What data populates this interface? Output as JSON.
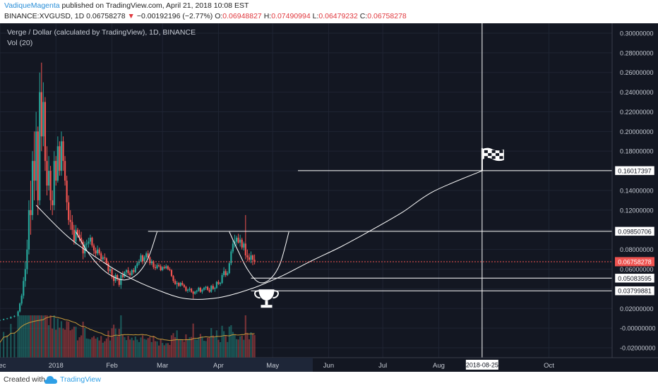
{
  "header": {
    "author": "VadiqueMagenta",
    "published": "published on TradingView.com, April 21, 2018 10:08 EST",
    "symbol_line": "BINANCE:XVGUSD, 1D",
    "last": "0.06758278",
    "change_arrow": "▼",
    "change": "−0.00192196 (−2.77%)",
    "o_label": "O:",
    "o_value": "0.06948827",
    "h_label": "H:",
    "h_value": "0.07490994",
    "l_label": "L:",
    "l_value": "0.06479232",
    "c_label": "C:",
    "c_value": "0.06758278"
  },
  "footer": {
    "created_with": "Created with",
    "brand": "TradingView"
  },
  "colors": {
    "background": "#131722",
    "up": "#26a69a",
    "down": "#ef5350",
    "price_line": "#ef5350",
    "annotation": "#ffffff",
    "volume_ma": "#c79a3a"
  },
  "chart_data": {
    "type": "candlestick",
    "title": "Verge / Dollar (calculated by TradingView), 1D, BINANCE",
    "volume_label": "Vol (20)",
    "ylim": [
      -0.03,
      0.31
    ],
    "y_ticks": [
      "0.30000000",
      "0.28000000",
      "0.26000000",
      "0.24000000",
      "0.22000000",
      "0.20000000",
      "0.18000000",
      "0.16000000",
      "0.14000000",
      "0.12000000",
      "0.10000000",
      "0.08000000",
      "0.06000000",
      "0.04000000",
      "0.02000000",
      "-0.00000000",
      "-0.02000000"
    ],
    "y_tick_values": [
      0.3,
      0.28,
      0.26,
      0.24,
      0.22,
      0.2,
      0.18,
      0.16,
      0.14,
      0.12,
      0.1,
      0.08,
      0.06,
      0.04,
      0.02,
      0.0,
      -0.02
    ],
    "x_range": [
      "2017-12-01",
      "2018-11-05"
    ],
    "x_ticks": [
      {
        "label": "Dec",
        "date": "2017-12-01"
      },
      {
        "label": "2018",
        "date": "2018-01-01"
      },
      {
        "label": "Feb",
        "date": "2018-02-01"
      },
      {
        "label": "Mar",
        "date": "2018-03-01"
      },
      {
        "label": "Apr",
        "date": "2018-04-01"
      },
      {
        "label": "May",
        "date": "2018-05-01"
      },
      {
        "label": "Jun",
        "date": "2018-06-01"
      },
      {
        "label": "Jul",
        "date": "2018-07-01"
      },
      {
        "label": "Aug",
        "date": "2018-08-01"
      },
      {
        "label": "Oct",
        "date": "2018-10-01"
      }
    ],
    "crosshair": {
      "date": "2018-08-25",
      "label": "2018-08-25"
    },
    "last_price": {
      "value": 0.06758278,
      "label": "0.06758278"
    },
    "levels": [
      {
        "value": 0.16017397,
        "label": "0.16017397",
        "from": "2018-05-15"
      },
      {
        "value": 0.09850706,
        "label": "0.09850706",
        "from": "2018-02-21"
      },
      {
        "value": 0.05083595,
        "label": "0.05083595",
        "from": "2018-04-19"
      },
      {
        "value": 0.03799881,
        "label": "0.03799881",
        "from": "2018-04-19"
      }
    ],
    "trend_path": [
      [
        "2017-12-21",
        0.125
      ],
      [
        "2018-01-07",
        0.094
      ],
      [
        "2018-01-24",
        0.071
      ],
      [
        "2018-02-09",
        0.053
      ],
      [
        "2018-02-26",
        0.039
      ],
      [
        "2018-03-14",
        0.03
      ],
      [
        "2018-04-01",
        0.031
      ],
      [
        "2018-04-19",
        0.04
      ],
      [
        "2018-05-06",
        0.053
      ],
      [
        "2018-05-22",
        0.068
      ],
      [
        "2018-06-08",
        0.083
      ],
      [
        "2018-06-25",
        0.1
      ],
      [
        "2018-07-12",
        0.118
      ],
      [
        "2018-07-29",
        0.139
      ],
      [
        "2018-08-25",
        0.16
      ]
    ],
    "cups": [
      [
        [
          "2018-01-12",
          0.098
        ],
        [
          "2018-01-18",
          0.079
        ],
        [
          "2018-01-25",
          0.063
        ],
        [
          "2018-02-01",
          0.053
        ],
        [
          "2018-02-08",
          0.049
        ],
        [
          "2018-02-15",
          0.055
        ],
        [
          "2018-02-21",
          0.071
        ],
        [
          "2018-02-26",
          0.098
        ]
      ],
      [
        [
          "2018-04-07",
          0.098
        ],
        [
          "2018-04-12",
          0.078
        ],
        [
          "2018-04-17",
          0.06
        ],
        [
          "2018-04-23",
          0.047
        ],
        [
          "2018-04-29",
          0.049
        ],
        [
          "2018-05-05",
          0.065
        ],
        [
          "2018-05-10",
          0.098
        ]
      ]
    ],
    "flag_date": "2018-08-25",
    "cup_icon_date": "2018-04-19",
    "candles": [
      [
        "2017-12-01",
        0.0082,
        0.0085,
        0.0078,
        0.0083
      ],
      [
        "2017-12-03",
        0.0083,
        0.0096,
        0.0081,
        0.0094
      ],
      [
        "2017-12-05",
        0.0094,
        0.0104,
        0.009,
        0.01
      ],
      [
        "2017-12-07",
        0.01,
        0.012,
        0.0095,
        0.0115
      ],
      [
        "2017-12-09",
        0.0115,
        0.013,
        0.011,
        0.0125
      ],
      [
        "2017-12-11",
        0.0125,
        0.018,
        0.012,
        0.017
      ],
      [
        "2017-12-12",
        0.017,
        0.026,
        0.016,
        0.025
      ],
      [
        "2017-12-13",
        0.025,
        0.035,
        0.023,
        0.033
      ],
      [
        "2017-12-14",
        0.033,
        0.052,
        0.03,
        0.048
      ],
      [
        "2017-12-15",
        0.048,
        0.068,
        0.042,
        0.06
      ],
      [
        "2017-12-16",
        0.06,
        0.09,
        0.055,
        0.08
      ],
      [
        "2017-12-17",
        0.08,
        0.13,
        0.075,
        0.12
      ],
      [
        "2017-12-18",
        0.12,
        0.15,
        0.095,
        0.115
      ],
      [
        "2017-12-19",
        0.115,
        0.18,
        0.11,
        0.17
      ],
      [
        "2017-12-20",
        0.17,
        0.2,
        0.13,
        0.15
      ],
      [
        "2017-12-21",
        0.15,
        0.22,
        0.14,
        0.2
      ],
      [
        "2017-12-22",
        0.2,
        0.205,
        0.115,
        0.13
      ],
      [
        "2017-12-23",
        0.13,
        0.26,
        0.125,
        0.24
      ],
      [
        "2017-12-24",
        0.24,
        0.27,
        0.18,
        0.195
      ],
      [
        "2017-12-25",
        0.195,
        0.25,
        0.185,
        0.23
      ],
      [
        "2017-12-26",
        0.23,
        0.235,
        0.16,
        0.17
      ],
      [
        "2017-12-27",
        0.17,
        0.185,
        0.135,
        0.145
      ],
      [
        "2017-12-28",
        0.145,
        0.175,
        0.14,
        0.16
      ],
      [
        "2017-12-29",
        0.16,
        0.165,
        0.12,
        0.13
      ],
      [
        "2017-12-30",
        0.13,
        0.14,
        0.115,
        0.125
      ],
      [
        "2017-12-31",
        0.125,
        0.18,
        0.12,
        0.17
      ],
      [
        "2018-01-01",
        0.17,
        0.175,
        0.145,
        0.15
      ],
      [
        "2018-01-02",
        0.15,
        0.195,
        0.148,
        0.185
      ],
      [
        "2018-01-03",
        0.185,
        0.19,
        0.155,
        0.16
      ],
      [
        "2018-01-04",
        0.16,
        0.2,
        0.155,
        0.19
      ],
      [
        "2018-01-05",
        0.19,
        0.195,
        0.16,
        0.17
      ],
      [
        "2018-01-06",
        0.17,
        0.175,
        0.145,
        0.15
      ],
      [
        "2018-01-07",
        0.15,
        0.155,
        0.12,
        0.128
      ],
      [
        "2018-01-08",
        0.128,
        0.135,
        0.105,
        0.11
      ],
      [
        "2018-01-09",
        0.11,
        0.12,
        0.1,
        0.108
      ],
      [
        "2018-01-10",
        0.108,
        0.115,
        0.095,
        0.1
      ],
      [
        "2018-01-11",
        0.1,
        0.105,
        0.085,
        0.088
      ],
      [
        "2018-01-12",
        0.088,
        0.105,
        0.085,
        0.1
      ],
      [
        "2018-01-13",
        0.1,
        0.102,
        0.092,
        0.095
      ],
      [
        "2018-01-14",
        0.095,
        0.1,
        0.088,
        0.092
      ],
      [
        "2018-01-15",
        0.092,
        0.098,
        0.085,
        0.088
      ],
      [
        "2018-01-16",
        0.088,
        0.09,
        0.07,
        0.076
      ],
      [
        "2018-01-17",
        0.076,
        0.088,
        0.072,
        0.085
      ],
      [
        "2018-01-18",
        0.085,
        0.09,
        0.08,
        0.086
      ],
      [
        "2018-01-19",
        0.086,
        0.092,
        0.082,
        0.088
      ],
      [
        "2018-01-20",
        0.088,
        0.095,
        0.085,
        0.092
      ],
      [
        "2018-01-21",
        0.092,
        0.093,
        0.082,
        0.084
      ],
      [
        "2018-01-22",
        0.084,
        0.086,
        0.075,
        0.079
      ],
      [
        "2018-01-23",
        0.079,
        0.082,
        0.073,
        0.076
      ],
      [
        "2018-01-24",
        0.076,
        0.084,
        0.074,
        0.08
      ],
      [
        "2018-01-25",
        0.08,
        0.082,
        0.074,
        0.076
      ],
      [
        "2018-01-26",
        0.076,
        0.078,
        0.068,
        0.07
      ],
      [
        "2018-01-27",
        0.07,
        0.074,
        0.068,
        0.072
      ],
      [
        "2018-01-28",
        0.072,
        0.076,
        0.069,
        0.071
      ],
      [
        "2018-01-29",
        0.071,
        0.072,
        0.064,
        0.066
      ],
      [
        "2018-01-30",
        0.066,
        0.067,
        0.056,
        0.058
      ],
      [
        "2018-01-31",
        0.058,
        0.062,
        0.056,
        0.06
      ],
      [
        "2018-02-01",
        0.06,
        0.061,
        0.05,
        0.052
      ],
      [
        "2018-02-02",
        0.052,
        0.054,
        0.043,
        0.048
      ],
      [
        "2018-02-03",
        0.048,
        0.056,
        0.046,
        0.054
      ],
      [
        "2018-02-04",
        0.054,
        0.055,
        0.048,
        0.05
      ],
      [
        "2018-02-05",
        0.05,
        0.051,
        0.042,
        0.044
      ],
      [
        "2018-02-06",
        0.044,
        0.056,
        0.04,
        0.054
      ],
      [
        "2018-02-07",
        0.054,
        0.058,
        0.05,
        0.052
      ],
      [
        "2018-02-08",
        0.052,
        0.058,
        0.051,
        0.057
      ],
      [
        "2018-02-09",
        0.057,
        0.06,
        0.054,
        0.059
      ],
      [
        "2018-02-10",
        0.059,
        0.062,
        0.054,
        0.056
      ],
      [
        "2018-02-11",
        0.056,
        0.058,
        0.052,
        0.054
      ],
      [
        "2018-02-12",
        0.054,
        0.06,
        0.053,
        0.059
      ],
      [
        "2018-02-13",
        0.059,
        0.061,
        0.055,
        0.057
      ],
      [
        "2018-02-14",
        0.057,
        0.064,
        0.056,
        0.063
      ],
      [
        "2018-02-15",
        0.063,
        0.068,
        0.061,
        0.066
      ],
      [
        "2018-02-16",
        0.066,
        0.07,
        0.064,
        0.068
      ],
      [
        "2018-02-17",
        0.068,
        0.076,
        0.067,
        0.074
      ],
      [
        "2018-02-18",
        0.074,
        0.075,
        0.065,
        0.068
      ],
      [
        "2018-02-19",
        0.068,
        0.074,
        0.066,
        0.072
      ],
      [
        "2018-02-20",
        0.072,
        0.078,
        0.07,
        0.076
      ],
      [
        "2018-02-21",
        0.076,
        0.079,
        0.07,
        0.072
      ],
      [
        "2018-02-22",
        0.072,
        0.073,
        0.064,
        0.066
      ],
      [
        "2018-02-23",
        0.066,
        0.07,
        0.064,
        0.068
      ],
      [
        "2018-02-24",
        0.068,
        0.069,
        0.06,
        0.062
      ],
      [
        "2018-02-25",
        0.062,
        0.065,
        0.059,
        0.061
      ],
      [
        "2018-02-26",
        0.061,
        0.066,
        0.06,
        0.064
      ],
      [
        "2018-02-27",
        0.064,
        0.066,
        0.062,
        0.063
      ],
      [
        "2018-02-28",
        0.063,
        0.065,
        0.058,
        0.059
      ],
      [
        "2018-03-01",
        0.059,
        0.063,
        0.058,
        0.062
      ],
      [
        "2018-03-02",
        0.062,
        0.064,
        0.06,
        0.061
      ],
      [
        "2018-03-03",
        0.061,
        0.065,
        0.06,
        0.063
      ],
      [
        "2018-03-04",
        0.063,
        0.064,
        0.059,
        0.06
      ],
      [
        "2018-03-05",
        0.06,
        0.062,
        0.058,
        0.059
      ],
      [
        "2018-03-06",
        0.059,
        0.06,
        0.052,
        0.053
      ],
      [
        "2018-03-07",
        0.053,
        0.054,
        0.046,
        0.048
      ],
      [
        "2018-03-08",
        0.048,
        0.05,
        0.044,
        0.045
      ],
      [
        "2018-03-09",
        0.045,
        0.048,
        0.04,
        0.046
      ],
      [
        "2018-03-10",
        0.046,
        0.047,
        0.042,
        0.043
      ],
      [
        "2018-03-11",
        0.043,
        0.047,
        0.042,
        0.046
      ],
      [
        "2018-03-12",
        0.046,
        0.048,
        0.043,
        0.044
      ],
      [
        "2018-03-13",
        0.044,
        0.045,
        0.041,
        0.042
      ],
      [
        "2018-03-14",
        0.042,
        0.043,
        0.037,
        0.038
      ],
      [
        "2018-03-15",
        0.038,
        0.04,
        0.036,
        0.039
      ],
      [
        "2018-03-16",
        0.039,
        0.042,
        0.037,
        0.04
      ],
      [
        "2018-03-17",
        0.04,
        0.041,
        0.036,
        0.037
      ],
      [
        "2018-03-18",
        0.037,
        0.038,
        0.03,
        0.035
      ],
      [
        "2018-03-19",
        0.035,
        0.038,
        0.034,
        0.037
      ],
      [
        "2018-03-20",
        0.037,
        0.039,
        0.035,
        0.038
      ],
      [
        "2018-03-21",
        0.038,
        0.042,
        0.037,
        0.041
      ],
      [
        "2018-03-22",
        0.041,
        0.042,
        0.036,
        0.037
      ],
      [
        "2018-03-23",
        0.037,
        0.04,
        0.035,
        0.039
      ],
      [
        "2018-03-24",
        0.039,
        0.042,
        0.038,
        0.041
      ],
      [
        "2018-03-25",
        0.041,
        0.043,
        0.039,
        0.042
      ],
      [
        "2018-03-26",
        0.042,
        0.043,
        0.038,
        0.039
      ],
      [
        "2018-03-27",
        0.039,
        0.041,
        0.036,
        0.037
      ],
      [
        "2018-03-28",
        0.037,
        0.044,
        0.036,
        0.043
      ],
      [
        "2018-03-29",
        0.043,
        0.045,
        0.039,
        0.04
      ],
      [
        "2018-03-30",
        0.04,
        0.042,
        0.037,
        0.041
      ],
      [
        "2018-03-31",
        0.041,
        0.048,
        0.04,
        0.047
      ],
      [
        "2018-04-01",
        0.047,
        0.049,
        0.044,
        0.045
      ],
      [
        "2018-04-02",
        0.045,
        0.047,
        0.043,
        0.046
      ],
      [
        "2018-04-03",
        0.046,
        0.056,
        0.045,
        0.054
      ],
      [
        "2018-04-04",
        0.054,
        0.062,
        0.052,
        0.058
      ],
      [
        "2018-04-05",
        0.058,
        0.06,
        0.052,
        0.054
      ],
      [
        "2018-04-06",
        0.054,
        0.058,
        0.053,
        0.056
      ],
      [
        "2018-04-07",
        0.056,
        0.068,
        0.055,
        0.066
      ],
      [
        "2018-04-08",
        0.066,
        0.08,
        0.064,
        0.078
      ],
      [
        "2018-04-09",
        0.078,
        0.09,
        0.076,
        0.086
      ],
      [
        "2018-04-10",
        0.086,
        0.095,
        0.082,
        0.088
      ],
      [
        "2018-04-11",
        0.088,
        0.094,
        0.084,
        0.092
      ],
      [
        "2018-04-12",
        0.092,
        0.096,
        0.086,
        0.087
      ],
      [
        "2018-04-13",
        0.087,
        0.095,
        0.083,
        0.09
      ],
      [
        "2018-04-14",
        0.09,
        0.092,
        0.08,
        0.082
      ],
      [
        "2018-04-15",
        0.082,
        0.088,
        0.079,
        0.086
      ],
      [
        "2018-04-16",
        0.086,
        0.115,
        0.07,
        0.074
      ],
      [
        "2018-04-17",
        0.074,
        0.08,
        0.068,
        0.072
      ],
      [
        "2018-04-18",
        0.072,
        0.076,
        0.068,
        0.0695
      ],
      [
        "2018-04-19",
        0.0695,
        0.078,
        0.066,
        0.074
      ],
      [
        "2018-04-20",
        0.074,
        0.075,
        0.064,
        0.0695
      ],
      [
        "2018-04-21",
        0.06948827,
        0.07490994,
        0.06479232,
        0.06758278
      ]
    ]
  }
}
